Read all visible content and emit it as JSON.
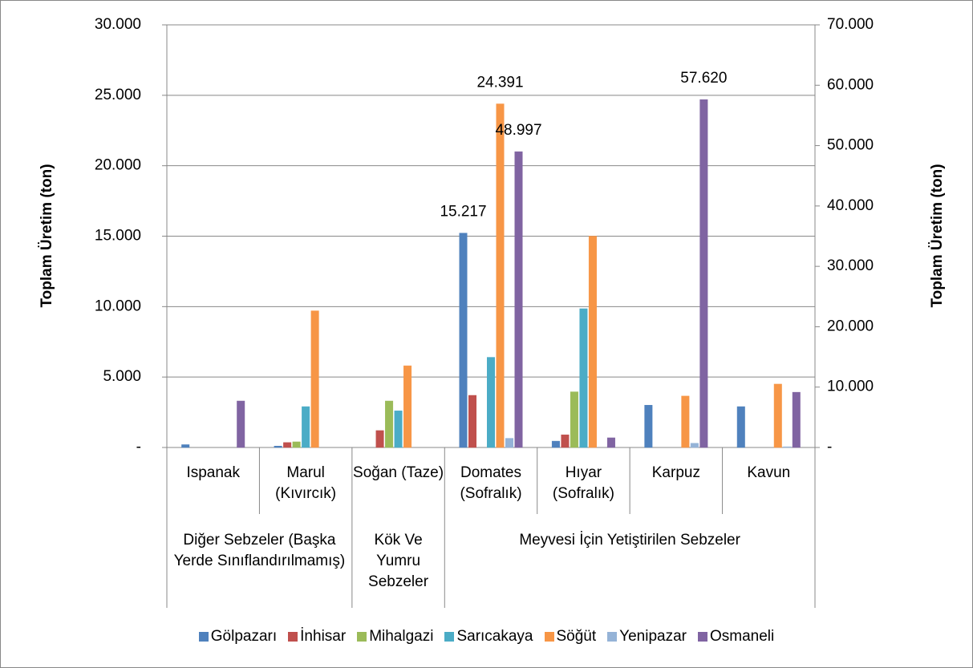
{
  "chart_data": {
    "type": "bar",
    "categories": [
      "Ispanak",
      "Marul (Kıvırcık)",
      "Soğan (Taze)",
      "Domates (Sofralık)",
      "Hıyar (Sofralık)",
      "Karpuz",
      "Kavun"
    ],
    "groups": [
      {
        "label": "Diğer Sebzeler (Başka Yerde Sınıflandırılmamış)",
        "span": 2
      },
      {
        "label": "Kök Ve Yumru Sebzeler",
        "span": 1
      },
      {
        "label": "Meyvesi İçin Yetiştirilen Sebzeler",
        "span": 4
      }
    ],
    "series": [
      {
        "name": "Gölpazarı",
        "color": "#4f81bd",
        "values": [
          200,
          100,
          0,
          15217,
          450,
          3000,
          2900
        ],
        "value_labels": [
          null,
          null,
          null,
          "15.217",
          null,
          null,
          null
        ]
      },
      {
        "name": "İnhisar",
        "color": "#c0504d",
        "values": [
          0,
          350,
          1200,
          3700,
          900,
          0,
          0
        ]
      },
      {
        "name": "Mihalgazi",
        "color": "#9bbb59",
        "values": [
          0,
          400,
          3300,
          0,
          3950,
          0,
          0
        ]
      },
      {
        "name": "Sarıcakaya",
        "color": "#4bacc6",
        "values": [
          0,
          2900,
          2600,
          6400,
          9850,
          0,
          0
        ]
      },
      {
        "name": "Söğüt",
        "color": "#f79646",
        "values": [
          0,
          9700,
          5800,
          24391,
          15000,
          3650,
          4500
        ],
        "value_labels": [
          null,
          null,
          null,
          "24.391",
          null,
          null,
          null
        ]
      },
      {
        "name": "Yenipazar",
        "color": "#95b3d7",
        "values": [
          0,
          0,
          0,
          650,
          0,
          300,
          50
        ]
      },
      {
        "name": "Osmaneli",
        "color": "#8064a2",
        "axis": "y2",
        "values": [
          7700,
          0,
          0,
          48997,
          1600,
          57620,
          9150
        ],
        "value_labels": [
          null,
          null,
          null,
          "48.997",
          null,
          "57.620",
          null
        ]
      }
    ],
    "ylabel": "Toplam Üretim (ton)",
    "y2label": "Toplam Üretim (ton)",
    "ylim": [
      0,
      30000
    ],
    "yticks": [
      {
        "value": 0,
        "label": "-"
      },
      {
        "value": 5000,
        "label": "5.000"
      },
      {
        "value": 10000,
        "label": "10.000"
      },
      {
        "value": 15000,
        "label": "15.000"
      },
      {
        "value": 20000,
        "label": "20.000"
      },
      {
        "value": 25000,
        "label": "25.000"
      },
      {
        "value": 30000,
        "label": "30.000"
      }
    ],
    "y2lim": [
      0,
      70000
    ],
    "y2ticks": [
      {
        "value": 0,
        "label": "-"
      },
      {
        "value": 10000,
        "label": "10.000"
      },
      {
        "value": 20000,
        "label": "20.000"
      },
      {
        "value": 30000,
        "label": "30.000"
      },
      {
        "value": 40000,
        "label": "40.000"
      },
      {
        "value": 50000,
        "label": "50.000"
      },
      {
        "value": 60000,
        "label": "60.000"
      },
      {
        "value": 70000,
        "label": "70.000"
      }
    ],
    "grid": true,
    "legend": "bottom"
  }
}
